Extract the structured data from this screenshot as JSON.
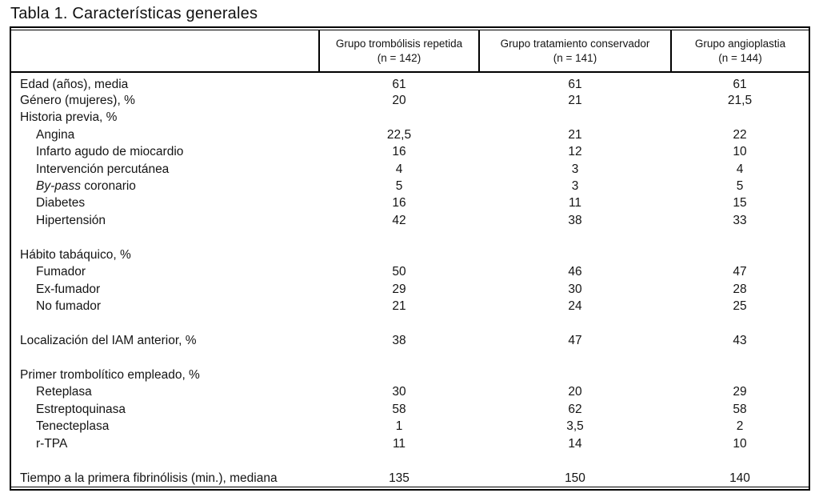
{
  "title": "Tabla 1. Características generales",
  "colors": {
    "text": "#141414",
    "border": "#000000",
    "background": "#ffffff"
  },
  "table": {
    "columns": [
      {
        "name": "Grupo trombólisis repetida",
        "n": "(n = 142)"
      },
      {
        "name": "Grupo tratamiento conservador",
        "n": "(n = 141)"
      },
      {
        "name": "Grupo angioplastia",
        "n": "(n = 144)"
      }
    ],
    "rows": [
      {
        "label": "Edad (años), media",
        "indent": 0,
        "values": [
          "61",
          "61",
          "61"
        ]
      },
      {
        "label": "Género (mujeres), %",
        "indent": 0,
        "values": [
          "20",
          "21",
          "21,5"
        ]
      },
      {
        "label": "Historia previa, %",
        "indent": 0,
        "values": [
          "",
          "",
          ""
        ]
      },
      {
        "label": "Angina",
        "indent": 1,
        "values": [
          "22,5",
          "21",
          "22"
        ]
      },
      {
        "label": "Infarto agudo de miocardio",
        "indent": 1,
        "values": [
          "16",
          "12",
          "10"
        ]
      },
      {
        "label": "Intervención percutánea",
        "indent": 1,
        "values": [
          "4",
          "3",
          "4"
        ]
      },
      {
        "italic_prefix": "By-pass",
        "label": " coronario",
        "indent": 1,
        "values": [
          "5",
          "3",
          "5"
        ]
      },
      {
        "label": "Diabetes",
        "indent": 1,
        "values": [
          "16",
          "11",
          "15"
        ]
      },
      {
        "label": "Hipertensión",
        "indent": 1,
        "values": [
          "42",
          "38",
          "33"
        ]
      },
      {
        "spacer": true
      },
      {
        "label": "Hábito tabáquico, %",
        "indent": 0,
        "values": [
          "",
          "",
          ""
        ]
      },
      {
        "label": "Fumador",
        "indent": 1,
        "values": [
          "50",
          "46",
          "47"
        ]
      },
      {
        "label": "Ex-fumador",
        "indent": 1,
        "values": [
          "29",
          "30",
          "28"
        ]
      },
      {
        "label": "No fumador",
        "indent": 1,
        "values": [
          "21",
          "24",
          "25"
        ]
      },
      {
        "spacer": true
      },
      {
        "label": "Localización del IAM anterior, %",
        "indent": 0,
        "values": [
          "38",
          "47",
          "43"
        ]
      },
      {
        "spacer": true
      },
      {
        "label": "Primer trombolítico empleado, %",
        "indent": 0,
        "values": [
          "",
          "",
          ""
        ]
      },
      {
        "label": "Reteplasa",
        "indent": 1,
        "values": [
          "30",
          "20",
          "29"
        ]
      },
      {
        "label": "Estreptoquinasa",
        "indent": 1,
        "values": [
          "58",
          "62",
          "58"
        ]
      },
      {
        "label": "Tenecteplasa",
        "indent": 1,
        "values": [
          "1",
          "3,5",
          "2"
        ]
      },
      {
        "label": "r-TPA",
        "indent": 1,
        "values": [
          "11",
          "14",
          "10"
        ]
      },
      {
        "spacer": true
      },
      {
        "label": "Tiempo a la primera fibrinólisis (min.), mediana",
        "indent": 0,
        "values": [
          "135",
          "150",
          "140"
        ]
      }
    ]
  }
}
